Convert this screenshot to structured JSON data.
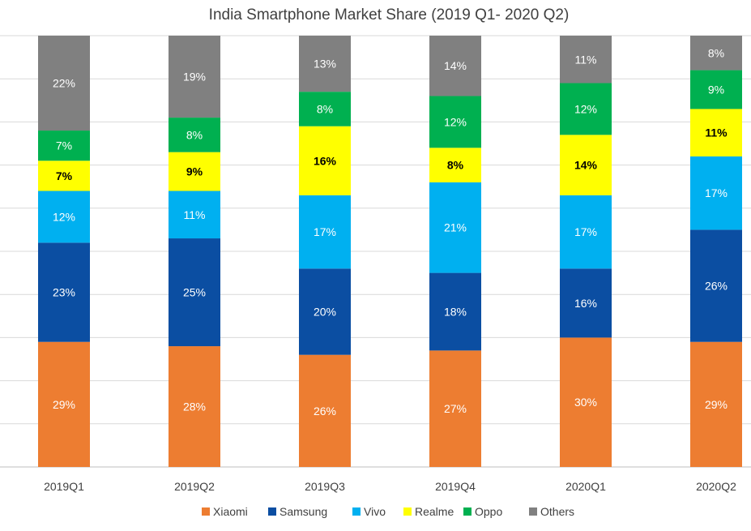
{
  "chart_data": {
    "type": "bar",
    "stacked": true,
    "title": "India Smartphone Market Share (2019 Q1- 2020 Q2)",
    "xlabel": "",
    "ylabel": "",
    "ylim": [
      0,
      100
    ],
    "grid": true,
    "legend": "bottom",
    "categories": [
      "2019Q1",
      "2019Q2",
      "2019Q3",
      "2019Q4",
      "2020Q1",
      "2020Q2"
    ],
    "series": [
      {
        "name": "Xiaomi",
        "color": "#ED7D31",
        "label_color": "#ffffff",
        "values": [
          29,
          28,
          26,
          27,
          30,
          29
        ],
        "labels": [
          "29%",
          "28%",
          "26%",
          "27%",
          "30%",
          "29%"
        ]
      },
      {
        "name": "Samsung",
        "color": "#0B4EA2",
        "label_color": "#ffffff",
        "values": [
          23,
          25,
          20,
          18,
          16,
          26
        ],
        "labels": [
          "23%",
          "25%",
          "20%",
          "18%",
          "16%",
          "26%"
        ]
      },
      {
        "name": "Vivo",
        "color": "#00B0F0",
        "label_color": "#ffffff",
        "values": [
          12,
          11,
          17,
          21,
          17,
          17
        ],
        "labels": [
          "12%",
          "11%",
          "17%",
          "21%",
          "17%",
          "17%"
        ]
      },
      {
        "name": "Realme",
        "color": "#FFFF00",
        "label_color": "#000000",
        "values": [
          7,
          9,
          16,
          8,
          14,
          11
        ],
        "labels": [
          "7%",
          "9%",
          "16%",
          "8%",
          "14%",
          "11%"
        ]
      },
      {
        "name": "Oppo",
        "color": "#00B050",
        "label_color": "#ffffff",
        "values": [
          7,
          8,
          8,
          12,
          12,
          9
        ],
        "labels": [
          "7%",
          "8%",
          "8%",
          "12%",
          "12%",
          "9%"
        ]
      },
      {
        "name": "Others",
        "color": "#808080",
        "label_color": "#ffffff",
        "values": [
          22,
          19,
          13,
          14,
          11,
          8
        ],
        "labels": [
          "22%",
          "19%",
          "13%",
          "14%",
          "11%",
          "8%"
        ]
      }
    ]
  }
}
